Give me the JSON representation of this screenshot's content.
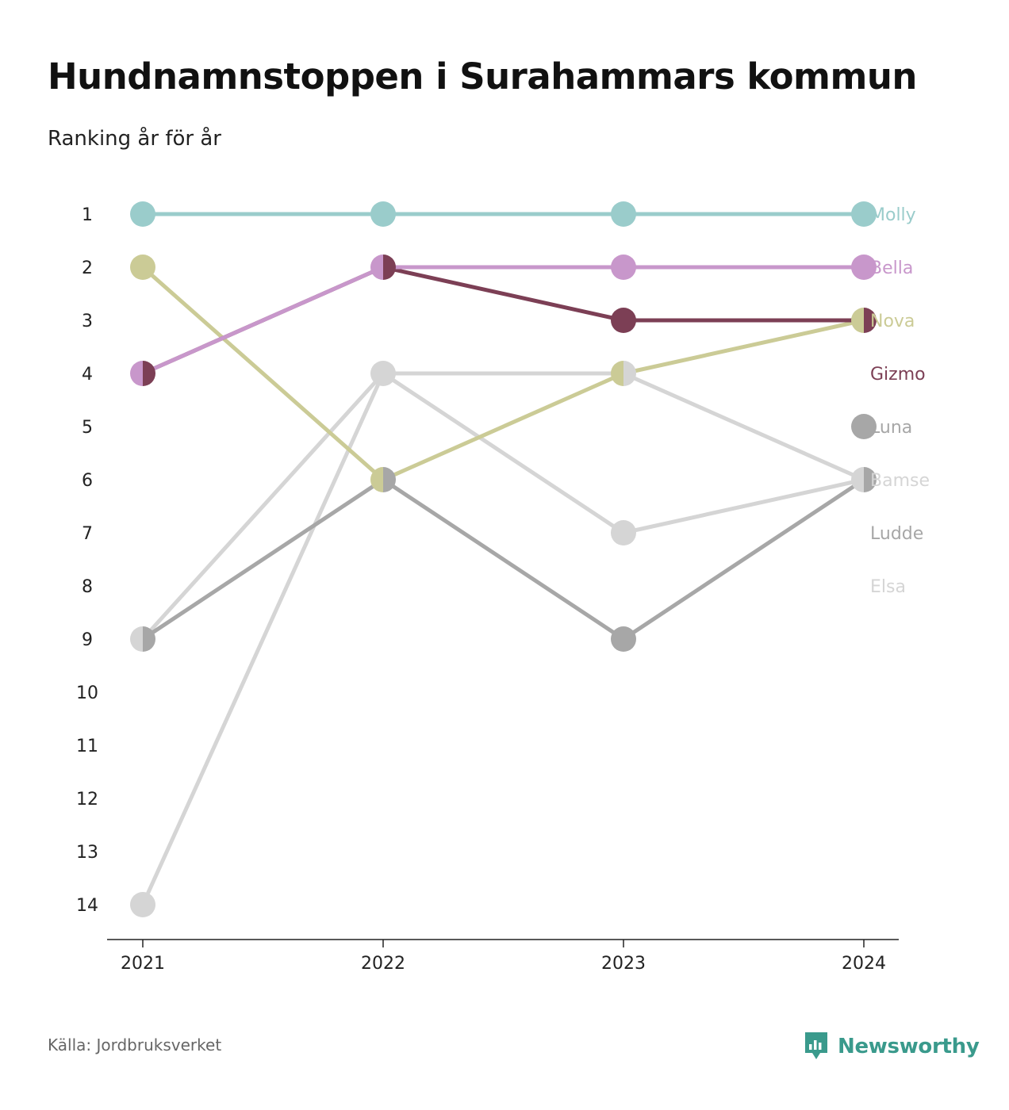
{
  "title": "Hundnamnstoppen i Surahammars kommun",
  "subtitle": "Ranking år för år",
  "source": "Källa: Jordbruksverket",
  "brand": {
    "name": "Newsworthy",
    "icon": "newsworthy-logo-icon",
    "color": "#3a9a8c"
  },
  "chart_data": {
    "type": "line",
    "title": "Hundnamnstoppen i Surahammars kommun",
    "subtitle": "Ranking år för år",
    "x": [
      "2021",
      "2022",
      "2023",
      "2024"
    ],
    "y_ticks": [
      "1",
      "2",
      "3",
      "4",
      "5",
      "6",
      "7",
      "8",
      "9",
      "10",
      "11",
      "12",
      "13",
      "14"
    ],
    "ylim": [
      1,
      14
    ],
    "y_inverted": true,
    "grid": false,
    "legend": "right-end labels",
    "series": [
      {
        "name": "Molly",
        "color": "#9acccb",
        "values": [
          1,
          1,
          1,
          1
        ]
      },
      {
        "name": "Bella",
        "color": "#c897cb",
        "values": [
          4,
          2,
          2,
          2
        ]
      },
      {
        "name": "Nova",
        "color": "#cbcb96",
        "values": [
          2,
          6,
          4,
          3
        ]
      },
      {
        "name": "Gizmo",
        "color": "#7c3f55",
        "values": [
          4,
          2,
          3,
          3
        ]
      },
      {
        "name": "Luna",
        "color": "#a7a7a7",
        "values": [
          null,
          null,
          null,
          5
        ]
      },
      {
        "name": "Bamse",
        "color": "#d5d5d5",
        "values": [
          9,
          4,
          7,
          6
        ]
      },
      {
        "name": "Ludde",
        "color": "#a7a7a7",
        "values": [
          9,
          6,
          9,
          6
        ]
      },
      {
        "name": "Elsa",
        "color": "#d5d5d5",
        "values": [
          14,
          4,
          4,
          6
        ]
      }
    ]
  }
}
